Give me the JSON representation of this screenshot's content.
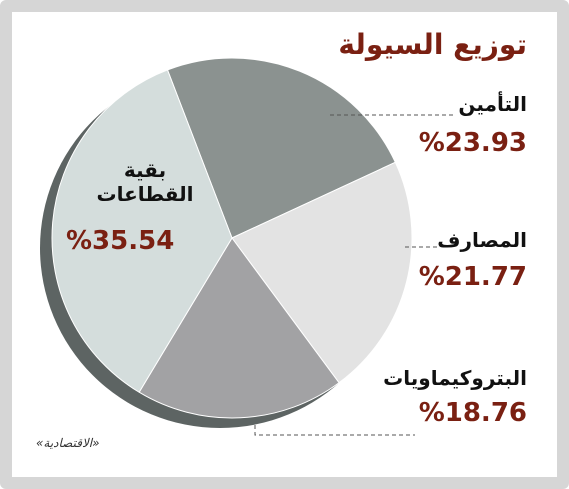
{
  "chart_data": {
    "type": "pie",
    "title": "توزيع السيولة",
    "categories": [
      "التأمين",
      "المصارف",
      "البتروكيماويات",
      "بقية القطاعات"
    ],
    "values": [
      23.93,
      21.77,
      18.76,
      35.54
    ],
    "value_labels": [
      "%23.93",
      "%21.77",
      "%18.76",
      "%35.54"
    ],
    "colors": [
      "#8b9290",
      "#e3e3e3",
      "#a2a2a4",
      "#d4dddc"
    ],
    "source": "«الاقتصادية»"
  }
}
